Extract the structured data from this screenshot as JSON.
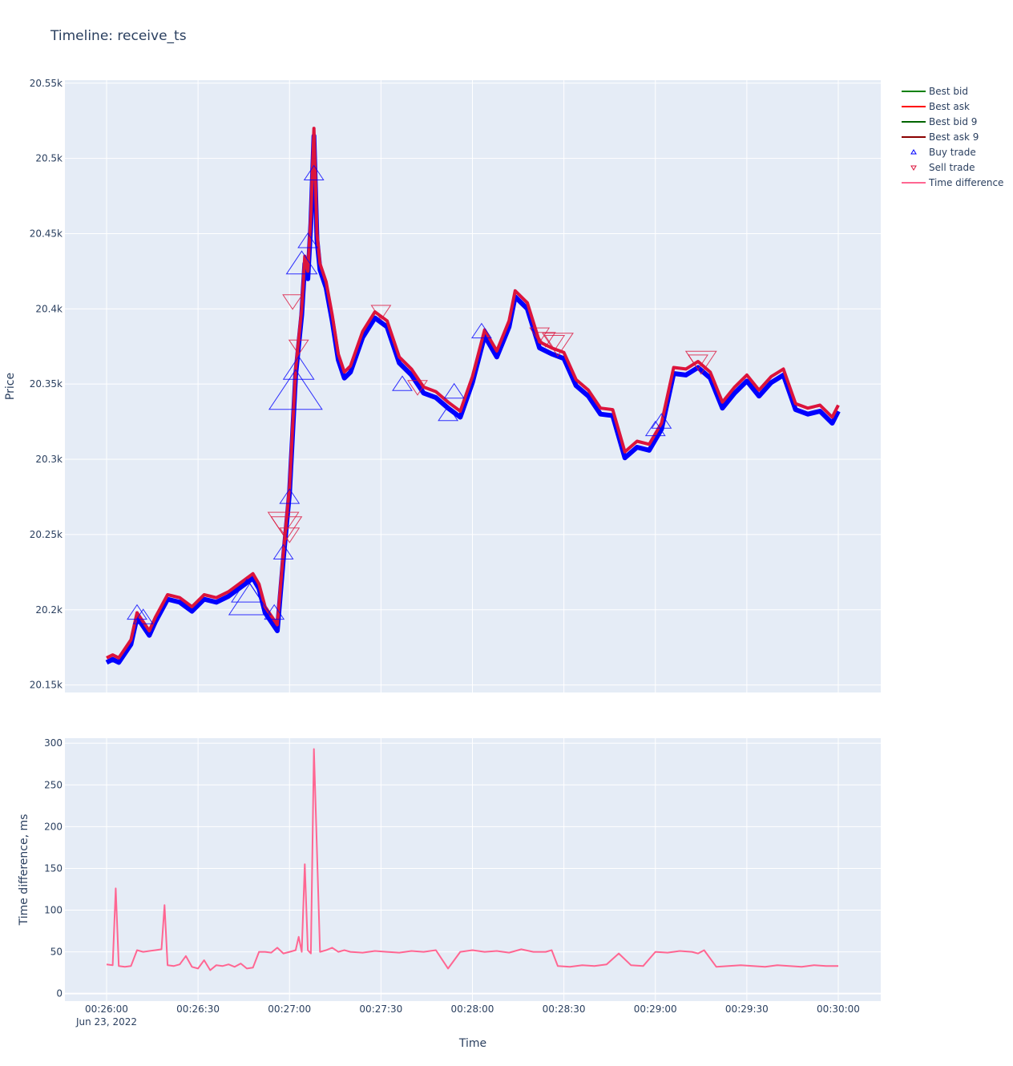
{
  "title": "Timeline: receive_ts",
  "colors": {
    "plot_bg": "#e5ecf6",
    "grid": "#ffffff",
    "best_bid": "#008000",
    "best_ask": "#ff0000",
    "best_bid_9": "#006400",
    "best_ask_9": "#8b0000",
    "buy_trade": "#0000ff",
    "sell_trade": "#dc143c",
    "time_difference": "#ff6692"
  },
  "legend": {
    "placement": "right",
    "items": [
      {
        "label": "Best bid",
        "kind": "line",
        "color_key": "best_bid"
      },
      {
        "label": "Best ask",
        "kind": "line",
        "color_key": "best_ask"
      },
      {
        "label": "Best bid 9",
        "kind": "line",
        "color_key": "best_bid_9"
      },
      {
        "label": "Best ask 9",
        "kind": "line",
        "color_key": "best_ask_9"
      },
      {
        "label": "Buy trade",
        "kind": "triangle-up",
        "color_key": "buy_trade"
      },
      {
        "label": "Sell trade",
        "kind": "triangle-down",
        "color_key": "sell_trade"
      },
      {
        "label": "Time difference",
        "kind": "line",
        "color_key": "time_difference"
      }
    ]
  },
  "chart_data": [
    {
      "type": "line",
      "panel": "top",
      "xlabel": "",
      "ylabel": "Price",
      "x_range": [
        "00:26:00",
        "00:30:00"
      ],
      "x_unit": "time",
      "ylim": [
        20145,
        20552
      ],
      "y_ticks": [
        {
          "value": 20150,
          "label": "20.15k"
        },
        {
          "value": 20200,
          "label": "20.2k"
        },
        {
          "value": 20250,
          "label": "20.25k"
        },
        {
          "value": 20300,
          "label": "20.3k"
        },
        {
          "value": 20350,
          "label": "20.35k"
        },
        {
          "value": 20400,
          "label": "20.4k"
        },
        {
          "value": 20450,
          "label": "20.45k"
        },
        {
          "value": 20500,
          "label": "20.5k"
        },
        {
          "value": 20550,
          "label": "20.55k"
        }
      ],
      "series": [
        {
          "name": "Best ask",
          "x": [
            "00:26:00",
            "00:26:02",
            "00:26:04",
            "00:26:08",
            "00:26:10",
            "00:26:14",
            "00:26:16",
            "00:26:20",
            "00:26:24",
            "00:26:28",
            "00:26:32",
            "00:26:36",
            "00:26:40",
            "00:26:44",
            "00:26:48",
            "00:26:50",
            "00:26:52",
            "00:26:56",
            "00:26:58",
            "00:27:00",
            "00:27:02",
            "00:27:04",
            "00:27:05",
            "00:27:06",
            "00:27:07",
            "00:27:08",
            "00:27:09",
            "00:27:10",
            "00:27:12",
            "00:27:14",
            "00:27:16",
            "00:27:18",
            "00:27:20",
            "00:27:24",
            "00:27:28",
            "00:27:32",
            "00:27:36",
            "00:27:40",
            "00:27:44",
            "00:27:48",
            "00:27:52",
            "00:27:56",
            "00:28:00",
            "00:28:04",
            "00:28:08",
            "00:28:12",
            "00:28:14",
            "00:28:18",
            "00:28:22",
            "00:28:26",
            "00:28:30",
            "00:28:34",
            "00:28:38",
            "00:28:42",
            "00:28:46",
            "00:28:50",
            "00:28:54",
            "00:28:58",
            "00:29:02",
            "00:29:06",
            "00:29:10",
            "00:29:14",
            "00:29:18",
            "00:29:22",
            "00:29:26",
            "00:29:30",
            "00:29:34",
            "00:29:38",
            "00:29:42",
            "00:29:46",
            "00:29:50",
            "00:29:54",
            "00:29:58",
            "00:30:00"
          ],
          "values": [
            20168,
            20170,
            20168,
            20180,
            20198,
            20186,
            20195,
            20210,
            20208,
            20202,
            20210,
            20208,
            20212,
            20218,
            20224,
            20217,
            20202,
            20190,
            20238,
            20282,
            20360,
            20400,
            20435,
            20425,
            20462,
            20520,
            20450,
            20430,
            20418,
            20396,
            20370,
            20358,
            20362,
            20385,
            20398,
            20392,
            20368,
            20360,
            20348,
            20345,
            20338,
            20332,
            20355,
            20386,
            20372,
            20392,
            20412,
            20404,
            20378,
            20374,
            20371,
            20353,
            20346,
            20334,
            20333,
            20305,
            20312,
            20310,
            20324,
            20361,
            20360,
            20365,
            20358,
            20338,
            20348,
            20356,
            20346,
            20355,
            20360,
            20337,
            20334,
            20336,
            20328,
            20336
          ]
        },
        {
          "name": "Best bid",
          "x": [
            "00:26:00",
            "00:26:02",
            "00:26:04",
            "00:26:08",
            "00:26:10",
            "00:26:14",
            "00:26:16",
            "00:26:20",
            "00:26:24",
            "00:26:28",
            "00:26:32",
            "00:26:36",
            "00:26:40",
            "00:26:44",
            "00:26:48",
            "00:26:50",
            "00:26:52",
            "00:26:56",
            "00:26:58",
            "00:27:00",
            "00:27:02",
            "00:27:04",
            "00:27:05",
            "00:27:06",
            "00:27:07",
            "00:27:08",
            "00:27:09",
            "00:27:10",
            "00:27:12",
            "00:27:14",
            "00:27:16",
            "00:27:18",
            "00:27:20",
            "00:27:24",
            "00:27:28",
            "00:27:32",
            "00:27:36",
            "00:27:40",
            "00:27:44",
            "00:27:48",
            "00:27:52",
            "00:27:56",
            "00:28:00",
            "00:28:04",
            "00:28:08",
            "00:28:12",
            "00:28:14",
            "00:28:18",
            "00:28:22",
            "00:28:26",
            "00:28:30",
            "00:28:34",
            "00:28:38",
            "00:28:42",
            "00:28:46",
            "00:28:50",
            "00:28:54",
            "00:28:58",
            "00:29:02",
            "00:29:06",
            "00:29:10",
            "00:29:14",
            "00:29:18",
            "00:29:22",
            "00:29:26",
            "00:29:30",
            "00:29:34",
            "00:29:38",
            "00:29:42",
            "00:29:46",
            "00:29:50",
            "00:29:54",
            "00:29:58",
            "00:30:00"
          ],
          "values": [
            20165,
            20167,
            20165,
            20177,
            20195,
            20183,
            20192,
            20207,
            20205,
            20199,
            20207,
            20205,
            20209,
            20215,
            20221,
            20214,
            20198,
            20186,
            20234,
            20278,
            20356,
            20396,
            20430,
            20420,
            20457,
            20515,
            20446,
            20426,
            20414,
            20392,
            20366,
            20354,
            20358,
            20381,
            20394,
            20388,
            20364,
            20356,
            20344,
            20341,
            20334,
            20328,
            20351,
            20382,
            20368,
            20388,
            20408,
            20400,
            20374,
            20370,
            20367,
            20349,
            20342,
            20330,
            20329,
            20301,
            20308,
            20306,
            20320,
            20357,
            20356,
            20361,
            20354,
            20334,
            20344,
            20352,
            20342,
            20351,
            20356,
            20333,
            20330,
            20332,
            20324,
            20332
          ]
        },
        {
          "name": "Buy trade",
          "marker": "triangle-up",
          "x": [
            "00:26:10",
            "00:26:12",
            "00:26:46",
            "00:26:47",
            "00:26:55",
            "00:26:58",
            "00:27:00",
            "00:27:02",
            "00:27:03",
            "00:27:04",
            "00:27:06",
            "00:27:08",
            "00:27:37",
            "00:27:52",
            "00:27:54",
            "00:28:03",
            "00:29:00",
            "00:29:02"
          ],
          "values": [
            20198,
            20195,
            20212,
            20206,
            20198,
            20238,
            20275,
            20345,
            20360,
            20430,
            20445,
            20490,
            20350,
            20330,
            20345,
            20385,
            20320,
            20325
          ],
          "sizes": [
            1,
            1,
            2,
            3,
            1,
            1,
            1,
            4,
            2,
            2,
            1,
            1,
            1,
            1,
            1,
            1,
            1,
            1
          ]
        },
        {
          "name": "Sell trade",
          "marker": "triangle-down",
          "x": [
            "00:26:58",
            "00:26:59",
            "00:27:00",
            "00:27:01",
            "00:27:03",
            "00:27:30",
            "00:27:42",
            "00:28:22",
            "00:28:24",
            "00:28:27",
            "00:28:28",
            "00:29:14",
            "00:29:15"
          ],
          "values": [
            20258,
            20255,
            20250,
            20405,
            20375,
            20398,
            20348,
            20383,
            20380,
            20378,
            20377,
            20365,
            20365
          ],
          "sizes": [
            2,
            2,
            1,
            1,
            1,
            1,
            1,
            1,
            1,
            1,
            2,
            1,
            2
          ]
        }
      ]
    },
    {
      "type": "line",
      "panel": "bottom",
      "xlabel": "Time",
      "ylabel": "Time difference, ms",
      "ylim": [
        -9,
        306
      ],
      "y_ticks": [
        0,
        50,
        100,
        150,
        200,
        250,
        300
      ],
      "x_ticks": [
        {
          "value": "00:26:00",
          "label": "00:26:00",
          "sublabel": "Jun 23, 2022"
        },
        {
          "value": "00:26:30",
          "label": "00:26:30"
        },
        {
          "value": "00:27:00",
          "label": "00:27:00"
        },
        {
          "value": "00:27:30",
          "label": "00:27:30"
        },
        {
          "value": "00:28:00",
          "label": "00:28:00"
        },
        {
          "value": "00:28:30",
          "label": "00:28:30"
        },
        {
          "value": "00:29:00",
          "label": "00:29:00"
        },
        {
          "value": "00:29:30",
          "label": "00:29:30"
        },
        {
          "value": "00:30:00",
          "label": "00:30:00"
        }
      ],
      "series": [
        {
          "name": "Time difference",
          "x": [
            "00:26:00",
            "00:26:02",
            "00:26:03",
            "00:26:04",
            "00:26:06",
            "00:26:08",
            "00:26:10",
            "00:26:12",
            "00:26:14",
            "00:26:16",
            "00:26:18",
            "00:26:19",
            "00:26:20",
            "00:26:22",
            "00:26:24",
            "00:26:26",
            "00:26:28",
            "00:26:30",
            "00:26:32",
            "00:26:34",
            "00:26:36",
            "00:26:38",
            "00:26:40",
            "00:26:42",
            "00:26:44",
            "00:26:46",
            "00:26:48",
            "00:26:50",
            "00:26:52",
            "00:26:54",
            "00:26:56",
            "00:26:58",
            "00:27:00",
            "00:27:02",
            "00:27:03",
            "00:27:04",
            "00:27:05",
            "00:27:06",
            "00:27:07",
            "00:27:08",
            "00:27:10",
            "00:27:12",
            "00:27:14",
            "00:27:16",
            "00:27:18",
            "00:27:20",
            "00:27:24",
            "00:27:28",
            "00:27:32",
            "00:27:36",
            "00:27:40",
            "00:27:44",
            "00:27:48",
            "00:27:52",
            "00:27:56",
            "00:28:00",
            "00:28:04",
            "00:28:08",
            "00:28:12",
            "00:28:16",
            "00:28:20",
            "00:28:24",
            "00:28:26",
            "00:28:28",
            "00:28:32",
            "00:28:36",
            "00:28:40",
            "00:28:44",
            "00:28:48",
            "00:28:52",
            "00:28:56",
            "00:29:00",
            "00:29:04",
            "00:29:08",
            "00:29:12",
            "00:29:14",
            "00:29:16",
            "00:29:20",
            "00:29:24",
            "00:29:28",
            "00:29:32",
            "00:29:36",
            "00:29:40",
            "00:29:44",
            "00:29:48",
            "00:29:52",
            "00:29:56",
            "00:30:00"
          ],
          "values": [
            35,
            34,
            126,
            33,
            32,
            33,
            52,
            50,
            51,
            52,
            53,
            106,
            34,
            33,
            35,
            45,
            32,
            30,
            40,
            28,
            34,
            33,
            35,
            32,
            36,
            30,
            31,
            50,
            50,
            49,
            55,
            48,
            50,
            52,
            68,
            50,
            155,
            52,
            48,
            293,
            50,
            52,
            55,
            50,
            52,
            50,
            49,
            51,
            50,
            49,
            51,
            50,
            52,
            30,
            50,
            52,
            50,
            51,
            49,
            53,
            50,
            50,
            52,
            33,
            32,
            34,
            33,
            35,
            48,
            34,
            33,
            50,
            49,
            51,
            50,
            48,
            52,
            32,
            33,
            34,
            33,
            32,
            34,
            33,
            32,
            34,
            33,
            33
          ]
        }
      ]
    }
  ]
}
